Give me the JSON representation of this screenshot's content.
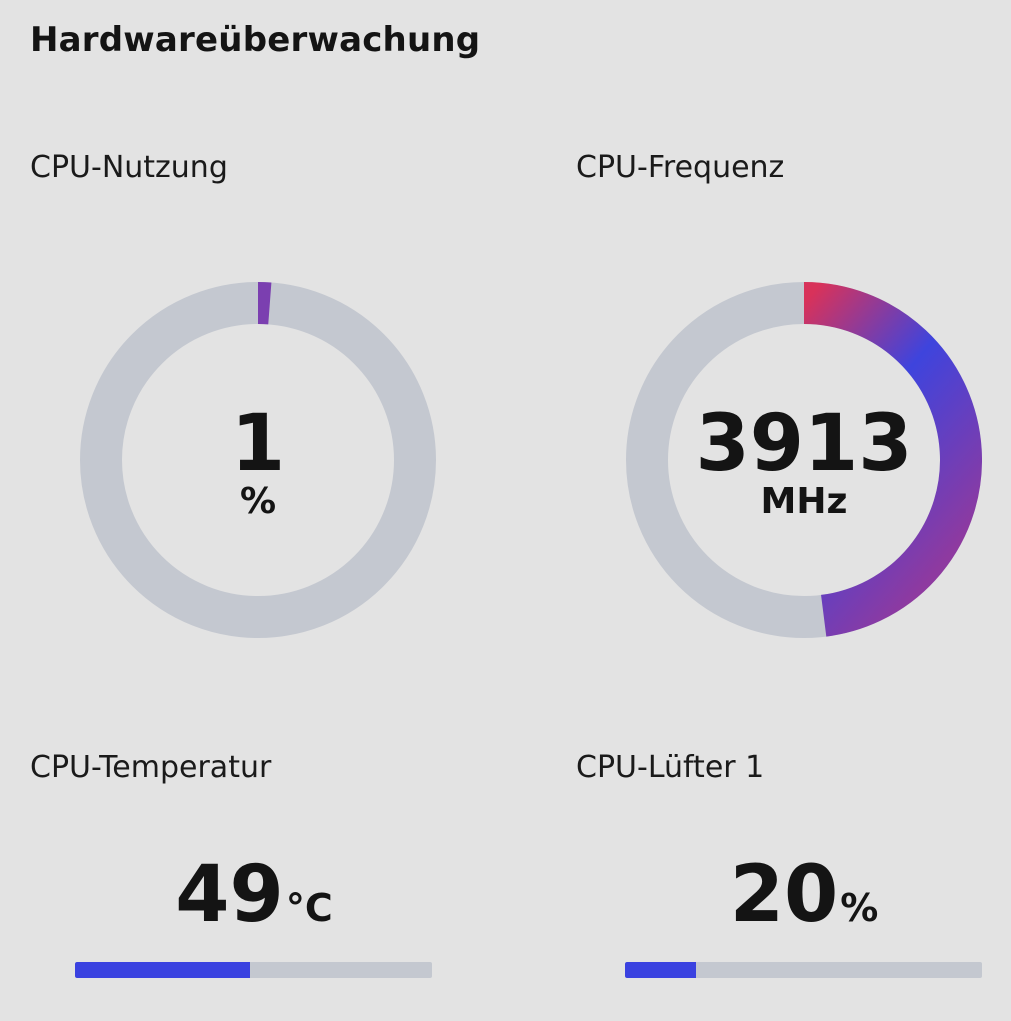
{
  "header": {
    "title": "Hardwareüberwachung"
  },
  "cpu_usage": {
    "label": "CPU-Nutzung",
    "value": "1",
    "unit": "%",
    "fraction": 0.01,
    "color": "#7b3fb0"
  },
  "cpu_frequency": {
    "label": "CPU-Frequenz",
    "value": "3913",
    "unit": "MHz",
    "fraction": 0.48,
    "gradient": [
      "#d8325a",
      "#3e44dd",
      "#8e3aa0"
    ]
  },
  "cpu_temperature": {
    "label": "CPU-Temperatur",
    "value": "49",
    "unit": "°C",
    "fraction": 0.49,
    "color": "#3a42e0"
  },
  "cpu_fan_1": {
    "label": "CPU-Lüfter 1",
    "value": "20",
    "unit": "%",
    "fraction": 0.2,
    "color": "#3a42e0"
  },
  "colors": {
    "track": "#c4c8d0",
    "background": "#e3e3e3"
  }
}
